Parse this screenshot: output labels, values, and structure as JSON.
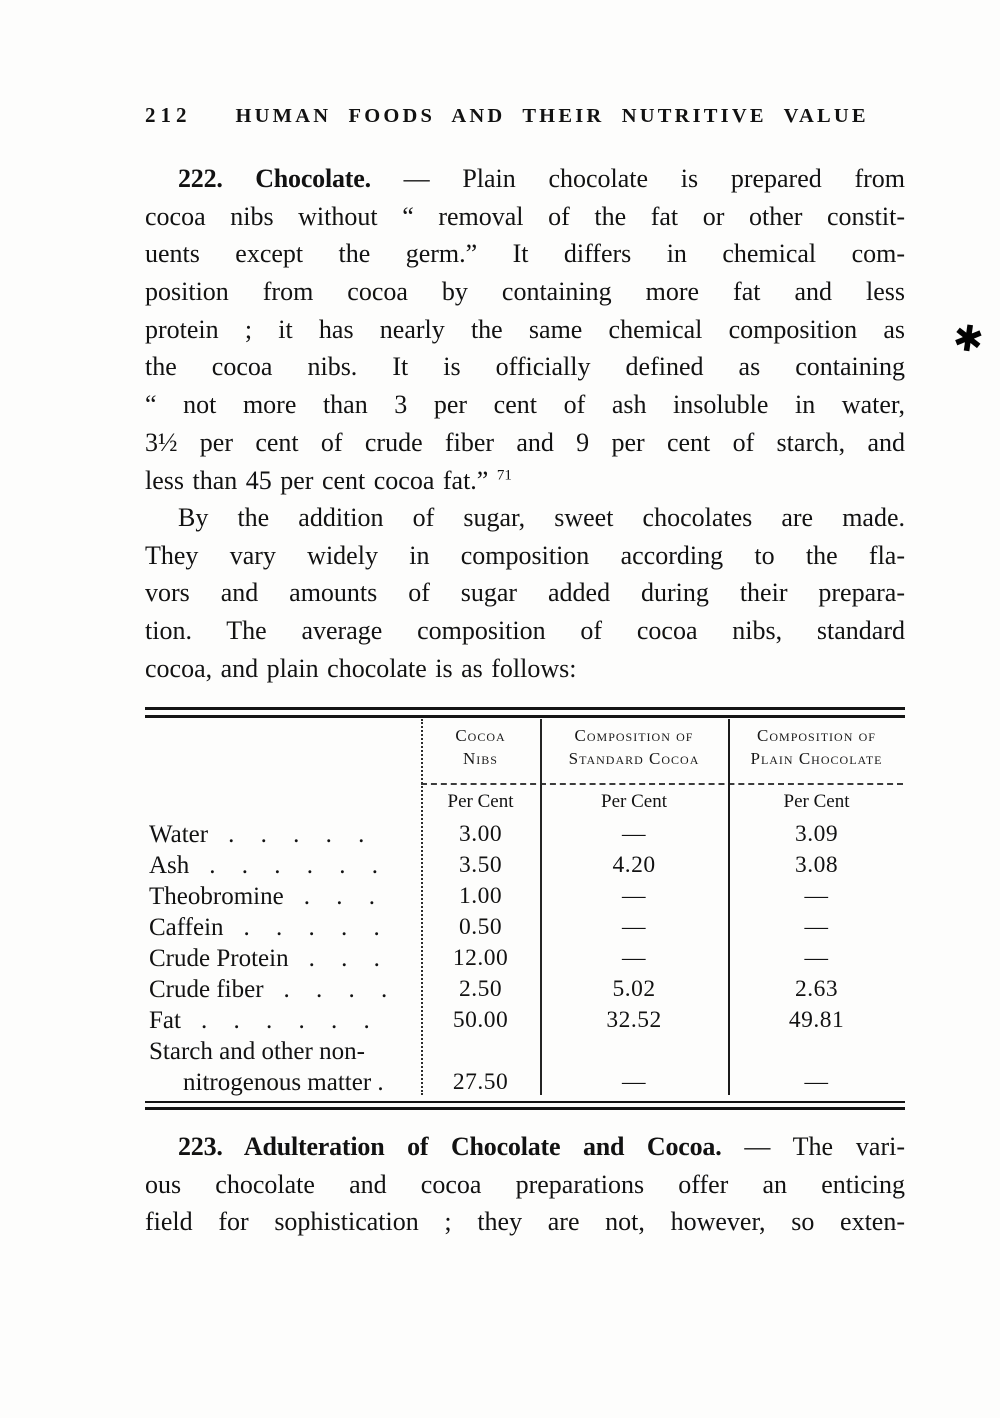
{
  "page": {
    "number": "212",
    "running_title": "HUMAN FOODS AND THEIR NUTRITIVE VALUE"
  },
  "artifacts": {
    "ink_blot_glyph": "✱"
  },
  "content": {
    "paragraphs": [
      {
        "name": "section-222-chocolate",
        "lines": [
          {
            "indent": true,
            "parts": [
              {
                "t": "222. Chocolate.",
                "b": true
              },
              {
                "t": " — Plain chocolate is prepared from"
              }
            ]
          },
          {
            "parts": [
              {
                "t": "cocoa nibs without “ removal of the fat or other constit-"
              }
            ]
          },
          {
            "parts": [
              {
                "t": "uents except the germ.”  It differs in chemical com-"
              }
            ]
          },
          {
            "parts": [
              {
                "t": "position from cocoa by containing more fat and less"
              }
            ]
          },
          {
            "parts": [
              {
                "t": "protein ; it has nearly the same chemical composition as"
              }
            ]
          },
          {
            "parts": [
              {
                "t": "the cocoa nibs.  It is officially defined as containing"
              }
            ]
          },
          {
            "parts": [
              {
                "t": "“ not more than 3 per cent of ash insoluble in water,"
              }
            ]
          },
          {
            "parts": [
              {
                "t": "3½ per cent of crude fiber and 9 per cent of starch, and"
              }
            ]
          },
          {
            "last": true,
            "parts": [
              {
                "t": "less than 45 per cent cocoa fat.” "
              },
              {
                "t": "71",
                "sup": true
              }
            ]
          }
        ]
      },
      {
        "name": "paragraph-sweet-chocolates",
        "lines": [
          {
            "indent": true,
            "parts": [
              {
                "t": "By the addition of sugar, sweet chocolates are made."
              }
            ]
          },
          {
            "parts": [
              {
                "t": "They vary widely in composition according to the fla-"
              }
            ]
          },
          {
            "parts": [
              {
                "t": "vors and amounts of sugar added during their prepara-"
              }
            ]
          },
          {
            "parts": [
              {
                "t": "tion.  The average composition of cocoa nibs, standard"
              }
            ]
          },
          {
            "last": true,
            "parts": [
              {
                "t": "cocoa, and plain chocolate is as follows:"
              }
            ]
          }
        ]
      },
      {
        "name": "section-223-adulteration",
        "lines": [
          {
            "indent": true,
            "parts": [
              {
                "t": "223. Adulteration of Chocolate and Cocoa.",
                "b": true
              },
              {
                "t": " — The vari-"
              }
            ]
          },
          {
            "parts": [
              {
                "t": "ous chocolate and cocoa preparations offer an enticing"
              }
            ]
          },
          {
            "parts": [
              {
                "t": "field for sophistication ; they are not, however, so exten-"
              }
            ]
          }
        ]
      }
    ]
  },
  "table": {
    "columns": [
      {
        "line1": "Cocoa",
        "line2": "Nibs"
      },
      {
        "line1": "Composition of",
        "line2": "Standard Cocoa"
      },
      {
        "line1": "Composition of",
        "line2": "Plain Chocolate"
      }
    ],
    "unit_label": "Per Cent",
    "rows": [
      {
        "label": "Water",
        "dots": ". . . . .",
        "values": [
          "3.00",
          "—",
          "3.09"
        ]
      },
      {
        "label": "Ash",
        "dots": ". . . . . .",
        "values": [
          "3.50",
          "4.20",
          "3.08"
        ]
      },
      {
        "label": "Theobromine",
        "dots": ". . .",
        "values": [
          "1.00",
          "—",
          "—"
        ]
      },
      {
        "label": "Caffein",
        "dots": ". . . . .",
        "values": [
          "0.50",
          "—",
          "—"
        ]
      },
      {
        "label": "Crude Protein",
        "dots": ". . .",
        "values": [
          "12.00",
          "—",
          "—"
        ]
      },
      {
        "label": "Crude fiber",
        "dots": ". . . .",
        "values": [
          "2.50",
          "5.02",
          "2.63"
        ]
      },
      {
        "label": "Fat",
        "dots": ". . . . . .",
        "values": [
          "50.00",
          "32.52",
          "49.81"
        ]
      },
      {
        "label": "Starch and other non-",
        "label2": "nitrogenous matter .",
        "dots": "",
        "values": [
          "27.50",
          "—",
          "—"
        ]
      }
    ]
  }
}
